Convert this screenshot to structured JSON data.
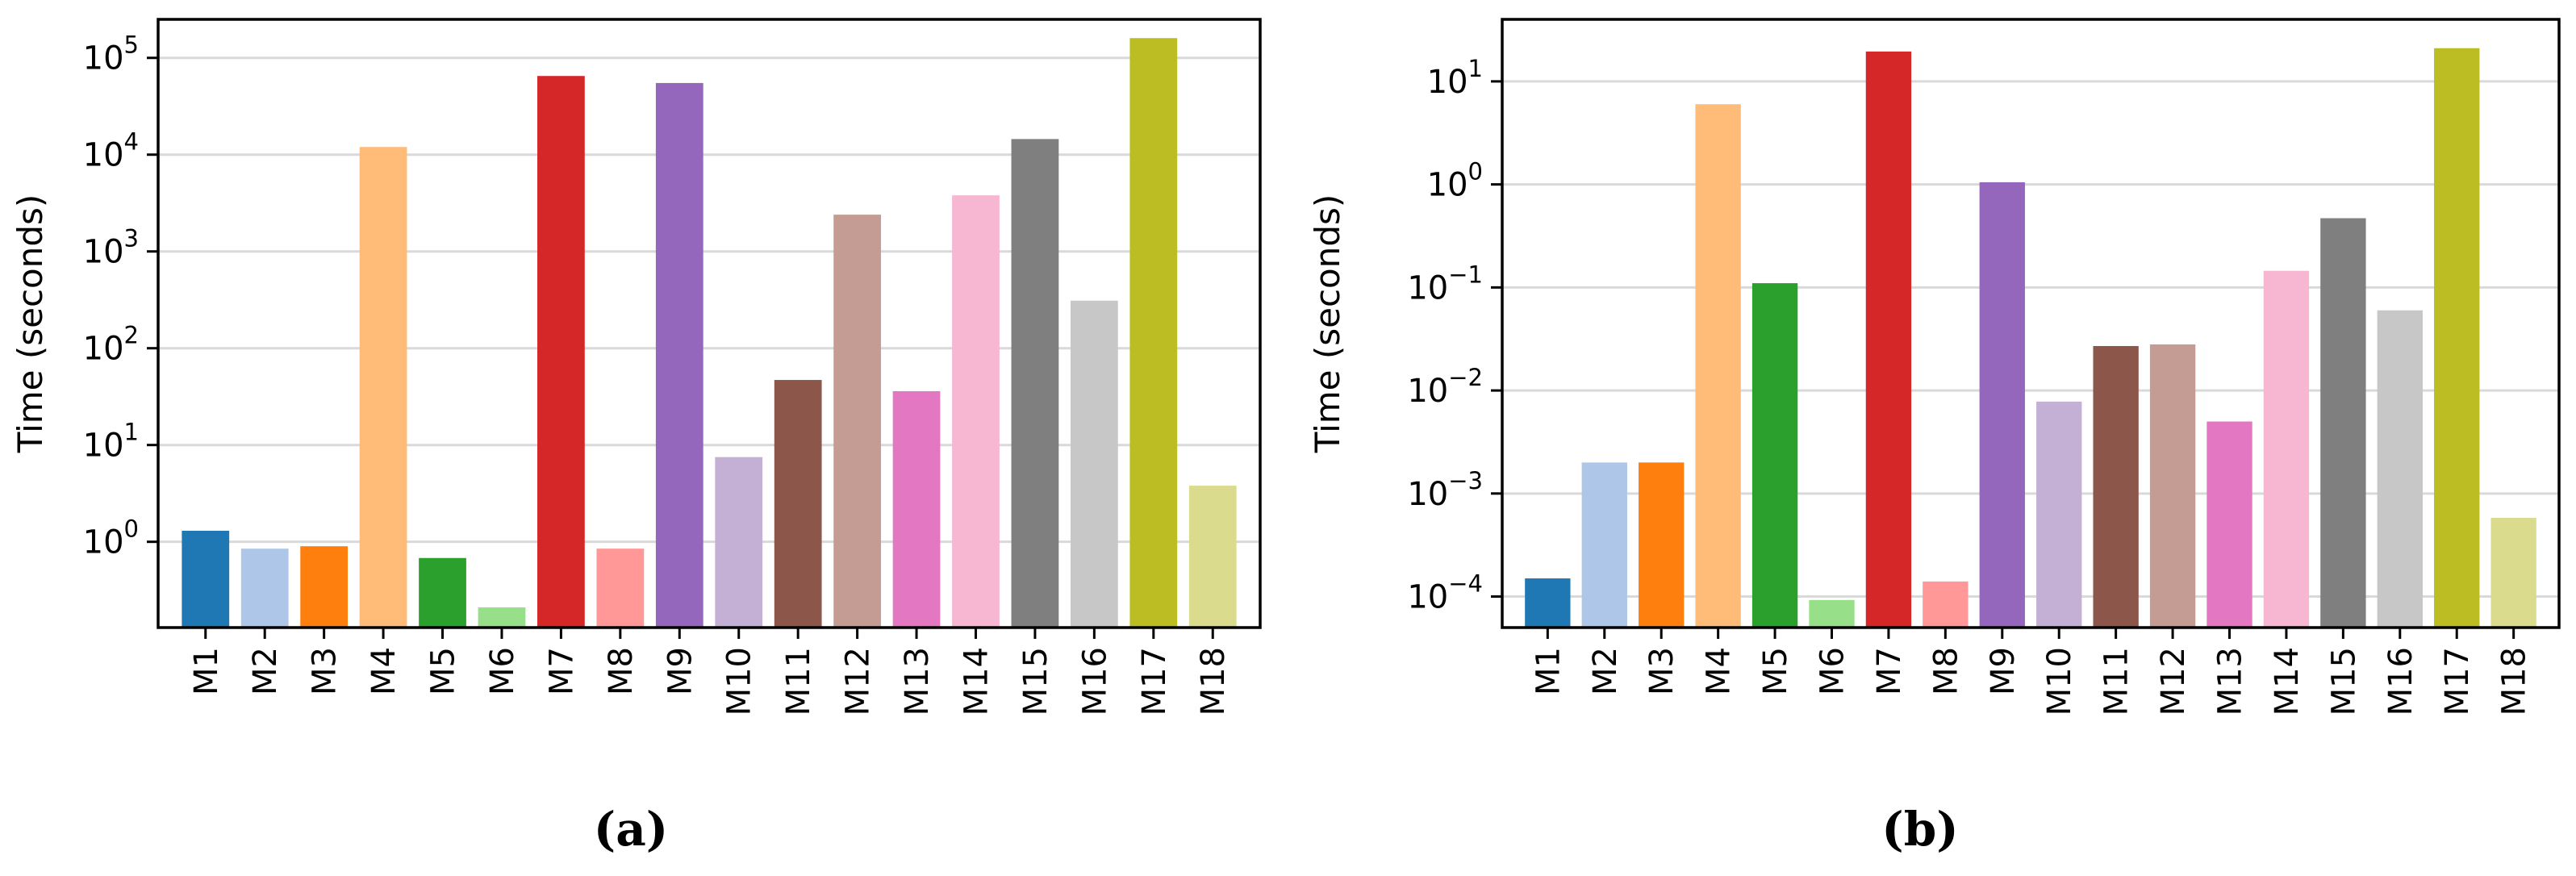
{
  "chart_data": [
    {
      "type": "bar",
      "panel_label": "(a)",
      "ylabel": "Time (seconds)",
      "yscale": "log",
      "ylim": [
        0.13,
        250000
      ],
      "yticks": [
        1,
        10,
        100,
        1000,
        10000,
        100000
      ],
      "ytick_labels": [
        {
          "base": "10",
          "exp": "0"
        },
        {
          "base": "10",
          "exp": "1"
        },
        {
          "base": "10",
          "exp": "2"
        },
        {
          "base": "10",
          "exp": "3"
        },
        {
          "base": "10",
          "exp": "4"
        },
        {
          "base": "10",
          "exp": "5"
        }
      ],
      "grid": "y",
      "categories": [
        "M1",
        "M2",
        "M3",
        "M4",
        "M5",
        "M6",
        "M7",
        "M8",
        "M9",
        "M10",
        "M11",
        "M12",
        "M13",
        "M14",
        "M15",
        "M16",
        "M17",
        "M18"
      ],
      "values": [
        1.3,
        0.85,
        0.9,
        12000,
        0.68,
        0.21,
        65000,
        0.85,
        55000,
        7.5,
        47,
        2400,
        36,
        3800,
        14500,
        310,
        160000,
        3.8
      ]
    },
    {
      "type": "bar",
      "panel_label": "(b)",
      "ylabel": "Time (seconds)",
      "yscale": "log",
      "ylim": [
        5e-05,
        40
      ],
      "yticks": [
        0.0001,
        0.001,
        0.01,
        0.1,
        1,
        10
      ],
      "ytick_labels": [
        {
          "base": "10",
          "exp": "−4"
        },
        {
          "base": "10",
          "exp": "−3"
        },
        {
          "base": "10",
          "exp": "−2"
        },
        {
          "base": "10",
          "exp": "−1"
        },
        {
          "base": "10",
          "exp": "0"
        },
        {
          "base": "10",
          "exp": "1"
        }
      ],
      "grid": "y",
      "categories": [
        "M1",
        "M2",
        "M3",
        "M4",
        "M5",
        "M6",
        "M7",
        "M8",
        "M9",
        "M10",
        "M11",
        "M12",
        "M13",
        "M14",
        "M15",
        "M16",
        "M17",
        "M18"
      ],
      "values": [
        0.00015,
        0.002,
        0.002,
        6.0,
        0.11,
        9.25e-05,
        19.5,
        0.00014,
        1.05,
        0.0078,
        0.027,
        0.028,
        0.005,
        0.145,
        0.47,
        0.06,
        21,
        0.00058
      ]
    }
  ],
  "colors": [
    "#1f77b4",
    "#aec7e8",
    "#ff7f0e",
    "#ffbb78",
    "#2ca02c",
    "#98df8a",
    "#d62728",
    "#ff9896",
    "#9467bd",
    "#c5b0d5",
    "#8c564b",
    "#c49c94",
    "#e377c2",
    "#f7b6d2",
    "#7f7f7f",
    "#c7c7c7",
    "#bcbd22",
    "#dbdb8d"
  ]
}
